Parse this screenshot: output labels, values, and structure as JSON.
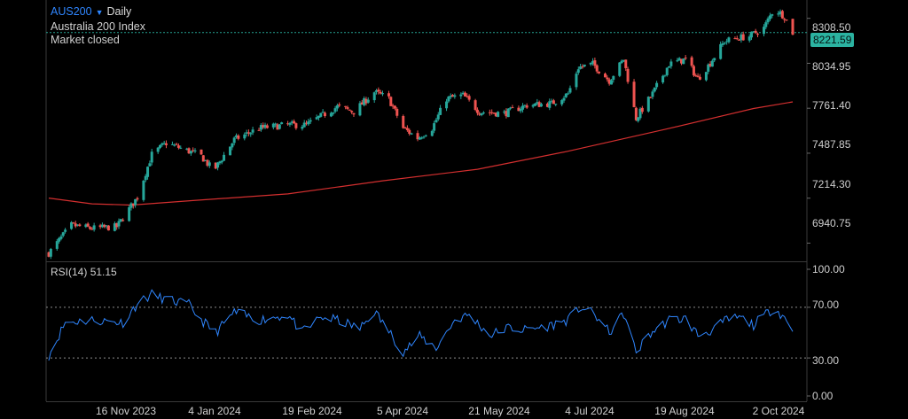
{
  "header": {
    "symbol": "AUS200",
    "timeframe": "Daily",
    "name": "Australia 200 Index",
    "status": "Market closed"
  },
  "price_axis": [
    "8308.50",
    "8034.95",
    "7761.40",
    "7487.85",
    "7214.30",
    "6940.75"
  ],
  "last_price": "8221.59",
  "rsi_axis": [
    "100.00",
    "70.00",
    "30.00",
    "0.00"
  ],
  "rsi": {
    "label": "RSI(14)",
    "value": "51.15"
  },
  "x_axis": [
    "16 Nov 2023",
    "4 Jan 2024",
    "19 Feb 2024",
    "5 Apr 2024",
    "21 May 2024",
    "4 Jul 2024",
    "19 Aug 2024",
    "2 Oct 2024"
  ],
  "colors": {
    "up": "#26a69a",
    "down": "#ef5350",
    "ma": "#d32f2f",
    "rsi_line": "#2f86ff",
    "badge": "#2bb3a1"
  },
  "chart_data": {
    "type": "candlestick",
    "price_ylim": [
      6830,
      8420
    ],
    "rsi_ylim": [
      0,
      100
    ],
    "price_anchors": [
      {
        "date": "2023-10-26",
        "close": 6880
      },
      {
        "date": "2023-11-06",
        "close": 7050
      },
      {
        "date": "2023-11-16",
        "close": 7030
      },
      {
        "date": "2023-11-28",
        "close": 7040
      },
      {
        "date": "2023-12-08",
        "close": 7220
      },
      {
        "date": "2023-12-15",
        "close": 7480
      },
      {
        "date": "2023-12-22",
        "close": 7550
      },
      {
        "date": "2024-01-02",
        "close": 7500
      },
      {
        "date": "2024-01-08",
        "close": 7470
      },
      {
        "date": "2024-01-14",
        "close": 7380
      },
      {
        "date": "2024-01-24",
        "close": 7570
      },
      {
        "date": "2024-02-05",
        "close": 7640
      },
      {
        "date": "2024-02-19",
        "close": 7660
      },
      {
        "date": "2024-02-28",
        "close": 7660
      },
      {
        "date": "2024-03-07",
        "close": 7720
      },
      {
        "date": "2024-03-14",
        "close": 7770
      },
      {
        "date": "2024-03-22",
        "close": 7740
      },
      {
        "date": "2024-04-01",
        "close": 7860
      },
      {
        "date": "2024-04-08",
        "close": 7820
      },
      {
        "date": "2024-04-15",
        "close": 7640
      },
      {
        "date": "2024-04-22",
        "close": 7580
      },
      {
        "date": "2024-04-29",
        "close": 7640
      },
      {
        "date": "2024-05-06",
        "close": 7820
      },
      {
        "date": "2024-05-14",
        "close": 7840
      },
      {
        "date": "2024-05-22",
        "close": 7740
      },
      {
        "date": "2024-06-03",
        "close": 7730
      },
      {
        "date": "2024-06-14",
        "close": 7780
      },
      {
        "date": "2024-06-26",
        "close": 7790
      },
      {
        "date": "2024-07-04",
        "close": 7850
      },
      {
        "date": "2024-07-09",
        "close": 8010
      },
      {
        "date": "2024-07-16",
        "close": 8030
      },
      {
        "date": "2024-07-24",
        "close": 7930
      },
      {
        "date": "2024-07-31",
        "close": 8060
      },
      {
        "date": "2024-08-06",
        "close": 7700
      },
      {
        "date": "2024-08-14",
        "close": 7850
      },
      {
        "date": "2024-08-22",
        "close": 8030
      },
      {
        "date": "2024-08-30",
        "close": 8060
      },
      {
        "date": "2024-09-05",
        "close": 7940
      },
      {
        "date": "2024-09-10",
        "close": 8020
      },
      {
        "date": "2024-09-18",
        "close": 8170
      },
      {
        "date": "2024-09-25",
        "close": 8190
      },
      {
        "date": "2024-09-30",
        "close": 8200
      },
      {
        "date": "2024-10-07",
        "close": 8250
      },
      {
        "date": "2024-10-12",
        "close": 8370
      },
      {
        "date": "2024-10-17",
        "close": 8320
      },
      {
        "date": "2024-10-21",
        "close": 8222
      }
    ],
    "ma_anchors": [
      {
        "date": "2023-10-26",
        "value": 7215
      },
      {
        "date": "2023-11-16",
        "value": 7180
      },
      {
        "date": "2023-12-05",
        "value": 7172
      },
      {
        "date": "2024-01-04",
        "value": 7200
      },
      {
        "date": "2024-02-19",
        "value": 7240
      },
      {
        "date": "2024-04-05",
        "value": 7320
      },
      {
        "date": "2024-05-21",
        "value": 7390
      },
      {
        "date": "2024-07-04",
        "value": 7500
      },
      {
        "date": "2024-08-19",
        "value": 7630
      },
      {
        "date": "2024-10-02",
        "value": 7760
      },
      {
        "date": "2024-10-21",
        "value": 7800
      }
    ],
    "rsi_anchors": [
      {
        "date": "2023-10-26",
        "value": 32
      },
      {
        "date": "2023-11-03",
        "value": 58
      },
      {
        "date": "2023-11-16",
        "value": 60
      },
      {
        "date": "2023-12-01",
        "value": 58
      },
      {
        "date": "2023-12-08",
        "value": 73
      },
      {
        "date": "2023-12-15",
        "value": 80
      },
      {
        "date": "2023-12-22",
        "value": 76
      },
      {
        "date": "2024-01-02",
        "value": 72
      },
      {
        "date": "2024-01-08",
        "value": 60
      },
      {
        "date": "2024-01-15",
        "value": 50
      },
      {
        "date": "2024-01-24",
        "value": 66
      },
      {
        "date": "2024-02-05",
        "value": 60
      },
      {
        "date": "2024-02-19",
        "value": 64
      },
      {
        "date": "2024-02-26",
        "value": 50
      },
      {
        "date": "2024-03-06",
        "value": 62
      },
      {
        "date": "2024-03-14",
        "value": 60
      },
      {
        "date": "2024-03-25",
        "value": 53
      },
      {
        "date": "2024-04-01",
        "value": 67
      },
      {
        "date": "2024-04-15",
        "value": 35
      },
      {
        "date": "2024-04-23",
        "value": 47
      },
      {
        "date": "2024-05-01",
        "value": 38
      },
      {
        "date": "2024-05-10",
        "value": 60
      },
      {
        "date": "2024-05-17",
        "value": 64
      },
      {
        "date": "2024-05-27",
        "value": 48
      },
      {
        "date": "2024-06-05",
        "value": 54
      },
      {
        "date": "2024-06-12",
        "value": 52
      },
      {
        "date": "2024-06-24",
        "value": 55
      },
      {
        "date": "2024-07-04",
        "value": 60
      },
      {
        "date": "2024-07-10",
        "value": 70
      },
      {
        "date": "2024-07-17",
        "value": 64
      },
      {
        "date": "2024-07-24",
        "value": 50
      },
      {
        "date": "2024-07-31",
        "value": 65
      },
      {
        "date": "2024-08-06",
        "value": 34
      },
      {
        "date": "2024-08-12",
        "value": 48
      },
      {
        "date": "2024-08-22",
        "value": 60
      },
      {
        "date": "2024-08-30",
        "value": 61
      },
      {
        "date": "2024-09-05",
        "value": 48
      },
      {
        "date": "2024-09-12",
        "value": 52
      },
      {
        "date": "2024-09-19",
        "value": 60
      },
      {
        "date": "2024-09-25",
        "value": 62
      },
      {
        "date": "2024-10-02",
        "value": 56
      },
      {
        "date": "2024-10-12",
        "value": 70
      },
      {
        "date": "2024-10-17",
        "value": 62
      },
      {
        "date": "2024-10-21",
        "value": 51
      }
    ],
    "rsi_levels": [
      70,
      30
    ],
    "grid": false
  }
}
